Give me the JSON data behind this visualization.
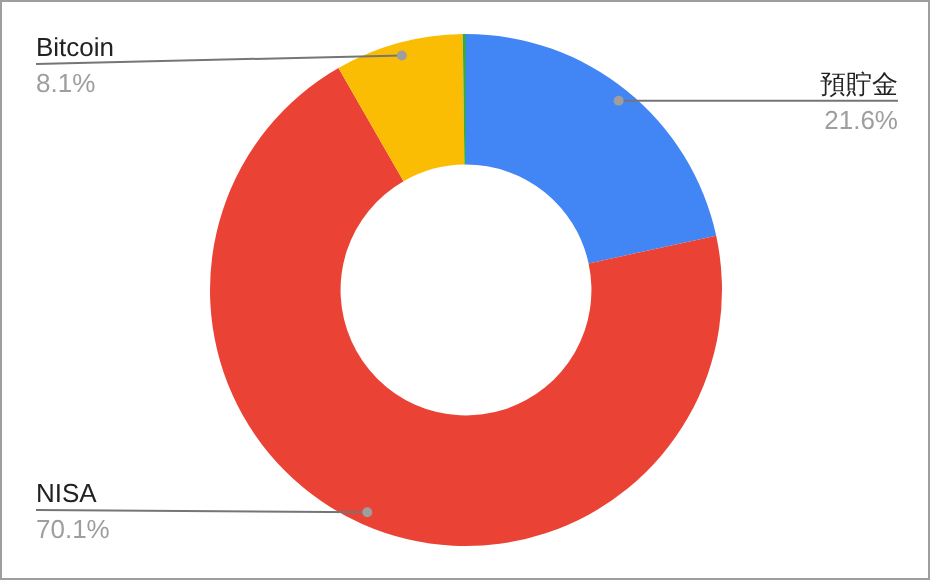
{
  "chart_data": {
    "type": "donut",
    "categories": [
      "預貯金",
      "NISA",
      "Bitcoin",
      null
    ],
    "values": [
      21.6,
      70.1,
      8.1,
      0.2
    ],
    "colors": [
      "#4285f4",
      "#ea4335",
      "#fbbc04",
      "#34a853"
    ],
    "value_labels": [
      "21.6%",
      "70.1%",
      "8.1%",
      null
    ]
  }
}
